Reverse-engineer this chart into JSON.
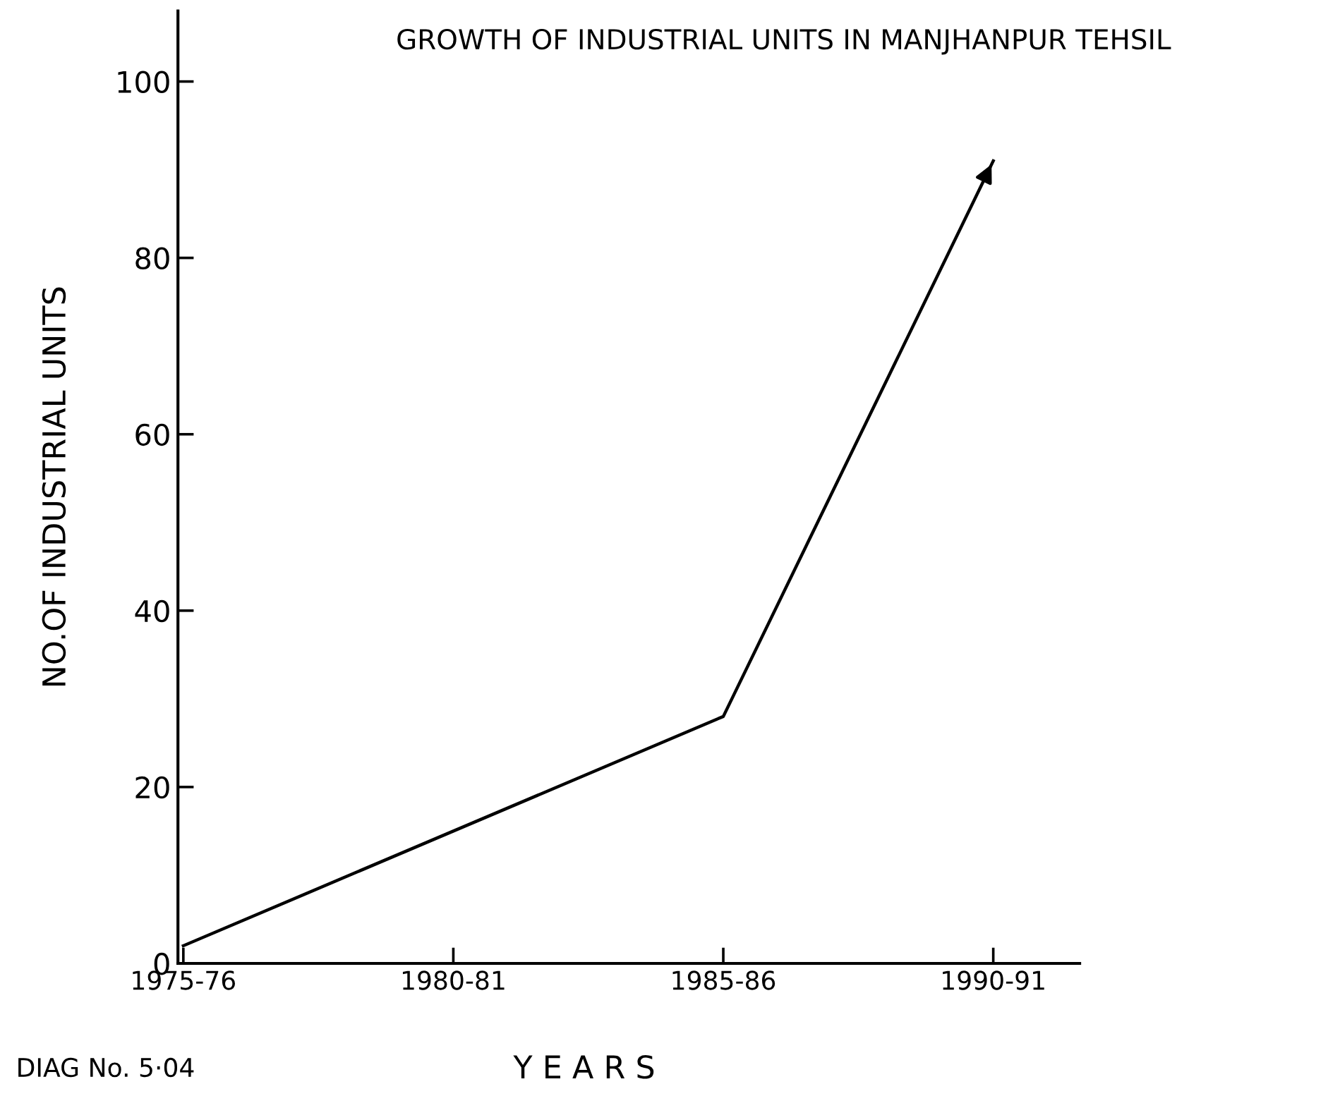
{
  "chart_data": {
    "type": "line",
    "title": "GROWTH OF INDUSTRIAL UNITS IN MANJHANPUR TEHSIL",
    "xlabel": "Y E A R S",
    "ylabel": "NO.OF INDUSTRIAL UNITS",
    "annotations": [
      "DIAG No. 5·04"
    ],
    "categories": [
      "1975-76",
      "1980-81",
      "1985-86",
      "1990-91"
    ],
    "series": [
      {
        "color": "#000000",
        "values": [
          2,
          15,
          28,
          91
        ]
      }
    ],
    "ylim": [
      0,
      108
    ],
    "yticks": [
      0,
      20,
      40,
      60,
      80,
      100
    ],
    "grid": false,
    "legend": false,
    "marker": "none",
    "line_style": "solid"
  }
}
